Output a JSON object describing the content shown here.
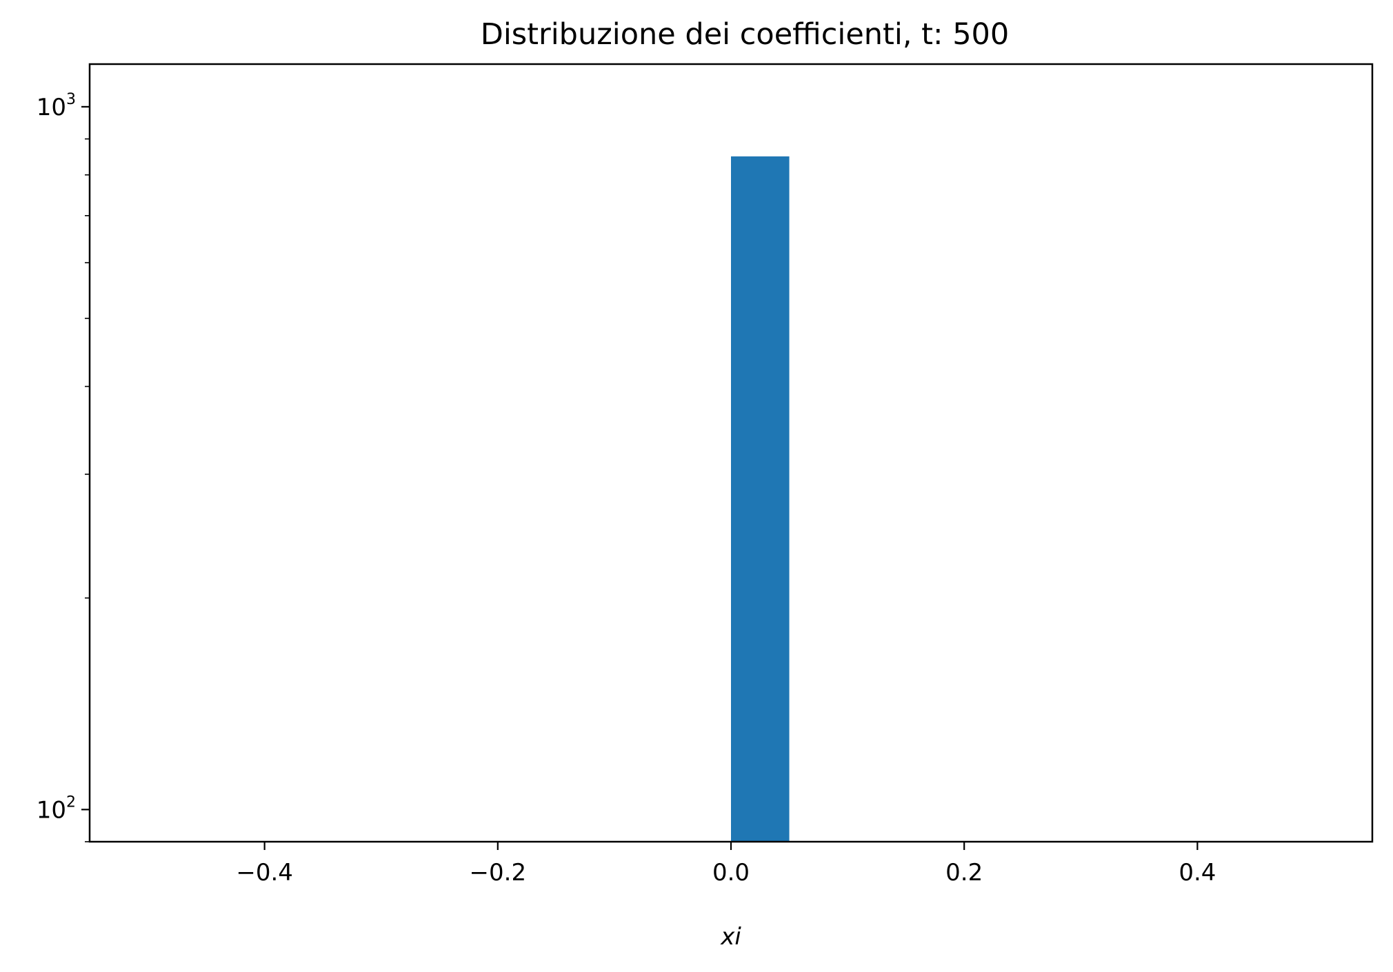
{
  "chart_data": {
    "type": "bar",
    "title": "Distribuzione dei coefficienti, t: 500",
    "xlabel": "xi",
    "ylabel": "",
    "y_scale": "log",
    "xlim": [
      -0.55,
      0.55
    ],
    "ylim": [
      90,
      1150
    ],
    "grid": false,
    "legend": "none",
    "bar_color": "#1f77b4",
    "bins": [
      {
        "x_start": 0.0,
        "x_end": 0.05,
        "count": 850
      }
    ],
    "x_ticks": [
      {
        "value": -0.4,
        "label": "−0.4"
      },
      {
        "value": -0.2,
        "label": "−0.2"
      },
      {
        "value": 0.0,
        "label": "0.0"
      },
      {
        "value": 0.2,
        "label": "0.2"
      },
      {
        "value": 0.4,
        "label": "0.4"
      }
    ],
    "y_ticks": [
      {
        "value": 100,
        "base": "10",
        "exponent": "2"
      },
      {
        "value": 1000,
        "base": "10",
        "exponent": "3"
      }
    ],
    "y_minor_ticks": [
      90,
      200,
      300,
      400,
      500,
      600,
      700,
      800,
      900
    ]
  }
}
